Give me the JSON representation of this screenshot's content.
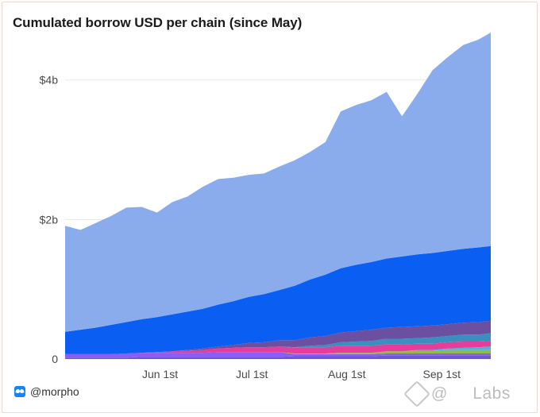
{
  "title": "Cumulated borrow USD per chain (since May)",
  "footer": {
    "handle": "@morpho",
    "icon": "butterfly-icon"
  },
  "watermark": {
    "at": "@",
    "logo": "Labs"
  },
  "chart_data": {
    "type": "area",
    "stacked": true,
    "x": [
      "2024-05-01",
      "2024-05-06",
      "2024-05-11",
      "2024-05-16",
      "2024-05-21",
      "2024-05-26",
      "2024-05-31",
      "2024-06-05",
      "2024-06-10",
      "2024-06-15",
      "2024-06-20",
      "2024-06-25",
      "2024-06-30",
      "2024-07-05",
      "2024-07-10",
      "2024-07-15",
      "2024-07-20",
      "2024-07-25",
      "2024-07-30",
      "2024-08-04",
      "2024-08-09",
      "2024-08-14",
      "2024-08-19",
      "2024-08-24",
      "2024-08-29",
      "2024-09-03",
      "2024-09-08",
      "2024-09-13",
      "2024-09-17"
    ],
    "series": [
      {
        "color": "#6a5acd",
        "values": [
          0.02,
          0.02,
          0.02,
          0.02,
          0.02,
          0.03,
          0.03,
          0.03,
          0.03,
          0.03,
          0.03,
          0.03,
          0.03,
          0.03,
          0.03,
          0.04,
          0.04,
          0.04,
          0.04,
          0.04,
          0.04,
          0.05,
          0.05,
          0.05,
          0.05,
          0.05,
          0.05,
          0.05,
          0.05
        ]
      },
      {
        "color": "#8b5cf6",
        "values": [
          0.05,
          0.05,
          0.05,
          0.05,
          0.06,
          0.06,
          0.06,
          0.06,
          0.06,
          0.06,
          0.07,
          0.07,
          0.07,
          0.07,
          0.07,
          0.03,
          0.03,
          0.03,
          0.03,
          0.03,
          0.03,
          0.03,
          0.03,
          0.03,
          0.03,
          0.03,
          0.03,
          0.03,
          0.03
        ]
      },
      {
        "color": "#94b94a",
        "values": [
          0,
          0,
          0,
          0,
          0,
          0,
          0,
          0,
          0,
          0,
          0,
          0,
          0,
          0,
          0,
          0.01,
          0.01,
          0.01,
          0.02,
          0.02,
          0.02,
          0.03,
          0.03,
          0.04,
          0.04,
          0.05,
          0.05,
          0.05,
          0.05
        ]
      },
      {
        "color": "#3fb8e6",
        "values": [
          0,
          0,
          0,
          0,
          0,
          0,
          0,
          0,
          0,
          0,
          0,
          0,
          0,
          0,
          0,
          0,
          0,
          0,
          0,
          0,
          0,
          0,
          0,
          0.01,
          0.01,
          0.02,
          0.03,
          0.04,
          0.05
        ]
      },
      {
        "color": "#e63c9a",
        "values": [
          0,
          0,
          0,
          0,
          0,
          0,
          0.01,
          0.02,
          0.03,
          0.04,
          0.05,
          0.06,
          0.07,
          0.07,
          0.08,
          0.08,
          0.09,
          0.09,
          0.1,
          0.1,
          0.1,
          0.1,
          0.1,
          0.09,
          0.09,
          0.09,
          0.09,
          0.08,
          0.08
        ]
      },
      {
        "color": "#3a8fbf",
        "values": [
          0,
          0,
          0,
          0,
          0,
          0,
          0,
          0,
          0,
          0,
          0,
          0,
          0,
          0,
          0,
          0.01,
          0.02,
          0.03,
          0.05,
          0.06,
          0.07,
          0.08,
          0.08,
          0.08,
          0.09,
          0.09,
          0.1,
          0.1,
          0.11
        ]
      },
      {
        "color": "#6b4fa0",
        "values": [
          0,
          0,
          0,
          0,
          0,
          0,
          0,
          0,
          0.01,
          0.02,
          0.03,
          0.04,
          0.06,
          0.07,
          0.09,
          0.1,
          0.12,
          0.13,
          0.14,
          0.15,
          0.16,
          0.16,
          0.17,
          0.17,
          0.17,
          0.17,
          0.17,
          0.18,
          0.18
        ]
      },
      {
        "color": "#0a5ff2",
        "values": [
          0.32,
          0.35,
          0.38,
          0.42,
          0.45,
          0.48,
          0.5,
          0.53,
          0.55,
          0.57,
          0.6,
          0.63,
          0.66,
          0.69,
          0.72,
          0.78,
          0.83,
          0.88,
          0.92,
          0.95,
          0.97,
          0.99,
          1.01,
          1.03,
          1.04,
          1.05,
          1.06,
          1.07,
          1.07
        ]
      },
      {
        "color": "#8aabec",
        "values": [
          1.52,
          1.43,
          1.5,
          1.56,
          1.64,
          1.61,
          1.5,
          1.61,
          1.65,
          1.75,
          1.8,
          1.77,
          1.75,
          1.73,
          1.77,
          1.8,
          1.83,
          1.9,
          2.25,
          2.29,
          2.32,
          2.39,
          2.01,
          2.3,
          2.62,
          2.78,
          2.92,
          2.98,
          3.06
        ]
      }
    ],
    "ylim": [
      0,
      4.6
    ],
    "yticks": [
      {
        "value": 0,
        "label": "0"
      },
      {
        "value": 2,
        "label": "$2b"
      },
      {
        "value": 4,
        "label": "$4b"
      }
    ],
    "xticks": [
      {
        "value": "2024-06-01",
        "label": "Jun 1st"
      },
      {
        "value": "2024-07-01",
        "label": "Jul 1st"
      },
      {
        "value": "2024-08-01",
        "label": "Aug 1st"
      },
      {
        "value": "2024-09-01",
        "label": "Sep 1st"
      }
    ],
    "grid": "horizontal",
    "legend": "none"
  }
}
